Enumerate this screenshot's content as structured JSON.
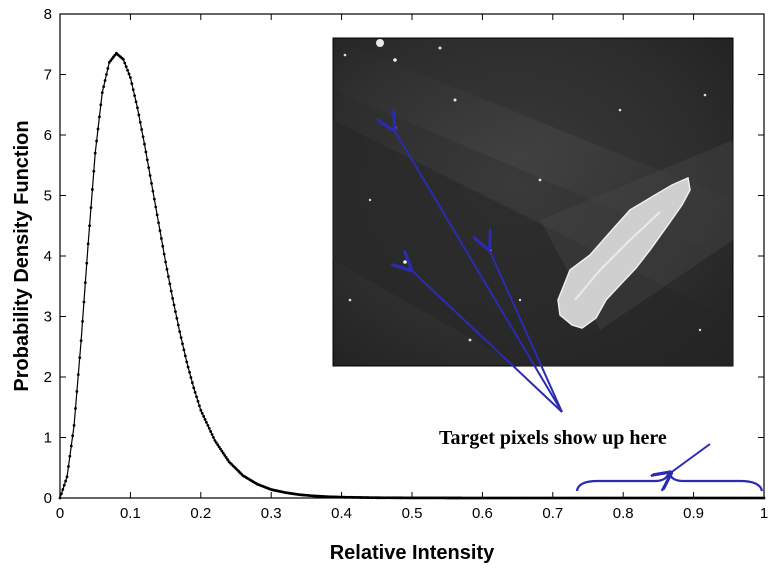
{
  "chart_data": {
    "type": "line",
    "xlabel": "Relative Intensity",
    "ylabel": "Probability Density Function",
    "xlim": [
      0,
      1
    ],
    "ylim": [
      0,
      8
    ],
    "x_ticks": [
      "0",
      "0.1",
      "0.2",
      "0.3",
      "0.4",
      "0.5",
      "0.6",
      "0.7",
      "0.8",
      "0.9",
      "1"
    ],
    "y_ticks": [
      "0",
      "1",
      "2",
      "3",
      "4",
      "5",
      "6",
      "7",
      "8"
    ],
    "grid": false,
    "series": [
      {
        "marker": "dot",
        "color": "#000000",
        "x": [
          0,
          0.01,
          0.02,
          0.03,
          0.04,
          0.05,
          0.06,
          0.07,
          0.08,
          0.09,
          0.1,
          0.11,
          0.12,
          0.13,
          0.14,
          0.15,
          0.16,
          0.17,
          0.18,
          0.19,
          0.2,
          0.22,
          0.24,
          0.26,
          0.28,
          0.3,
          0.32,
          0.34,
          0.36,
          0.38,
          0.4,
          0.45,
          0.5,
          0.6,
          0.7,
          0.8,
          0.9,
          1.0
        ],
        "y": [
          0.0,
          0.35,
          1.2,
          2.6,
          4.2,
          5.7,
          6.7,
          7.2,
          7.35,
          7.25,
          6.95,
          6.45,
          5.85,
          5.2,
          4.55,
          3.9,
          3.3,
          2.75,
          2.25,
          1.82,
          1.45,
          0.95,
          0.6,
          0.37,
          0.23,
          0.14,
          0.09,
          0.055,
          0.035,
          0.022,
          0.014,
          0.005,
          0.002,
          0.0,
          0.0,
          0.0,
          0.0,
          0.0
        ]
      }
    ]
  },
  "annotation": {
    "text": "Target pixels show up here",
    "arrow_color": "#2b2bb0",
    "bracket_x_range": [
      0.72,
      1.0
    ]
  },
  "inset": {
    "image_type": "grayscale-sar-photo"
  }
}
